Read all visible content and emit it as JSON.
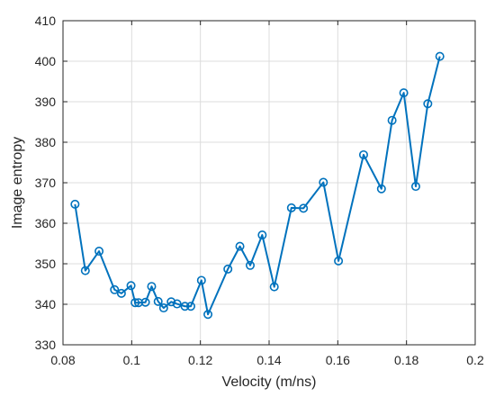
{
  "chart_data": {
    "type": "line",
    "title": "",
    "xlabel": "Velocity (m/ns)",
    "ylabel": "Image entropy",
    "xlim": [
      0.08,
      0.2
    ],
    "ylim": [
      330,
      410
    ],
    "xticks": [
      0.08,
      0.1,
      0.12,
      0.14,
      0.16,
      0.18,
      0.2
    ],
    "xtick_labels": [
      "0.08",
      "0.1",
      "0.12",
      "0.14",
      "0.16",
      "0.18",
      "0.2"
    ],
    "yticks": [
      330,
      340,
      350,
      360,
      370,
      380,
      390,
      400,
      410
    ],
    "ytick_labels": [
      "330",
      "340",
      "350",
      "360",
      "370",
      "380",
      "390",
      "400",
      "410"
    ],
    "grid": true,
    "colors": {
      "line": "#0072BD",
      "grid": "#dcdcdc",
      "axis": "#262626"
    },
    "marker": "circle",
    "series": [
      {
        "x": [
          0.0835,
          0.0865,
          0.0905,
          0.095,
          0.097,
          0.0998,
          0.101,
          0.102,
          0.104,
          0.1058,
          0.1077,
          0.1093,
          0.1115,
          0.1132,
          0.1155,
          0.1172,
          0.1203,
          0.1222,
          0.128,
          0.1315,
          0.1345,
          0.138,
          0.1415,
          0.1465,
          0.15,
          0.1558,
          0.1602,
          0.1675,
          0.1727,
          0.1758,
          0.1792,
          0.1827,
          0.1862,
          0.1897
        ],
        "y": [
          364.7,
          348.3,
          353.1,
          343.6,
          342.7,
          344.6,
          340.4,
          340.4,
          340.5,
          344.4,
          340.7,
          339.1,
          340.6,
          340.1,
          339.5,
          339.5,
          345.9,
          337.5,
          348.7,
          354.3,
          349.6,
          357.1,
          344.3,
          363.8,
          363.7,
          370.1,
          350.7,
          376.9,
          368.5,
          385.4,
          392.2,
          369.1,
          389.5,
          401.2
        ]
      }
    ]
  }
}
